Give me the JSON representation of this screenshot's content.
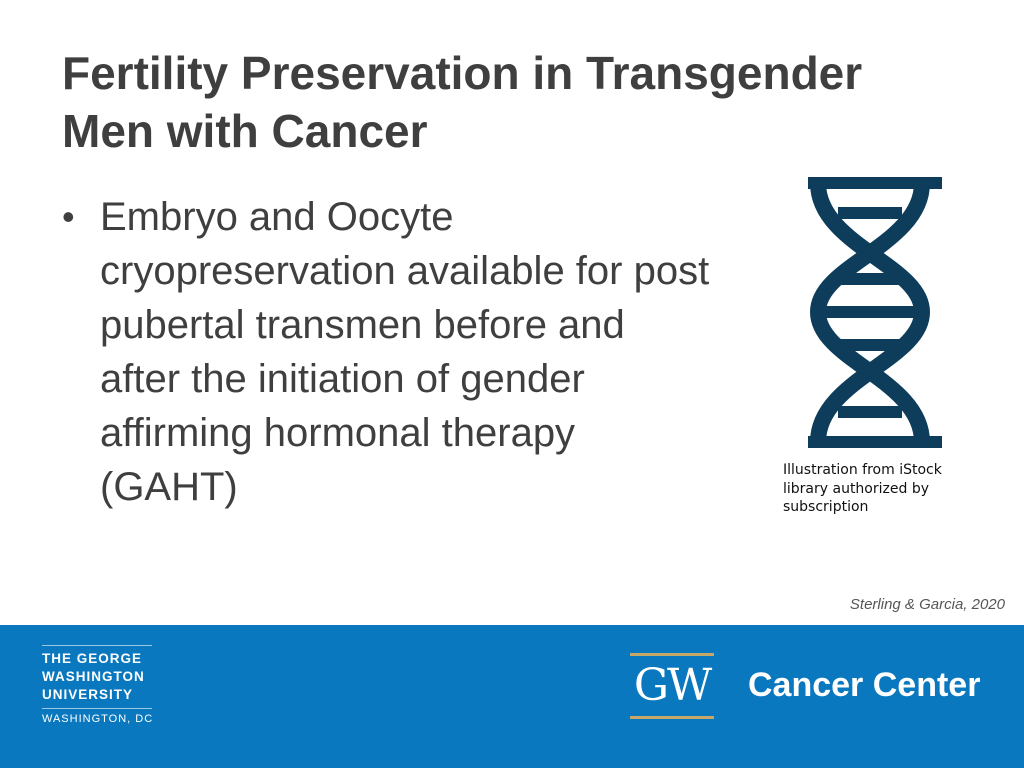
{
  "slide": {
    "title": "Fertility Preservation in Transgender Men with Cancer",
    "bullets": [
      "Embryo and Oocyte cryopreservation available for post pubertal transmen before and after the initiation of gender affirming hormonal therapy (GAHT)"
    ],
    "image_caption": "Illustration from iStock library authorized by subscription",
    "citation": "Sterling & Garcia, 2020"
  },
  "footer": {
    "university_lines": [
      "THE GEORGE",
      "WASHINGTON",
      "UNIVERSITY"
    ],
    "location": "WASHINGTON, DC",
    "gw_mark": "GW",
    "center_name": "Cancer Center"
  }
}
